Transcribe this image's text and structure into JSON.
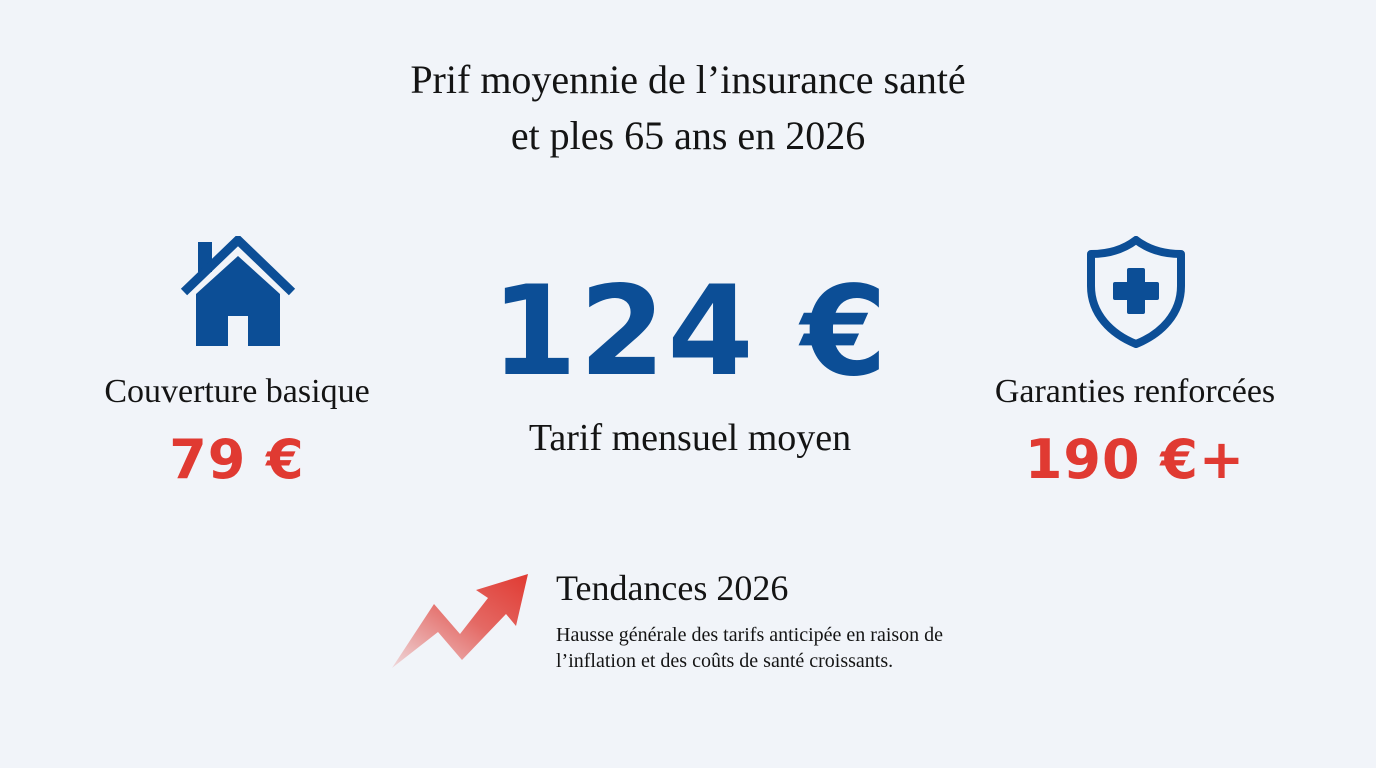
{
  "title": {
    "line1": "Prif moyennie de l’insurance santé",
    "line2": "et ples 65 ans en 2026"
  },
  "left": {
    "icon": "house-icon",
    "label": "Couverture basique",
    "price": "79 €"
  },
  "center": {
    "price": "124 €",
    "label": "Tarif mensuel moyen"
  },
  "right": {
    "icon": "shield-plus-icon",
    "label": "Garanties renforcées",
    "price": "190 €+"
  },
  "trend": {
    "icon": "trend-up-arrow-icon",
    "title": "Tendances 2026",
    "text": "Hausse générale des tarifs anticipée en raison de l’inflation et des coûts de santé croissants."
  },
  "colors": {
    "background": "#f1f4f9",
    "primary_blue": "#0c4e96",
    "accent_red": "#e03a32",
    "text": "#141414"
  }
}
